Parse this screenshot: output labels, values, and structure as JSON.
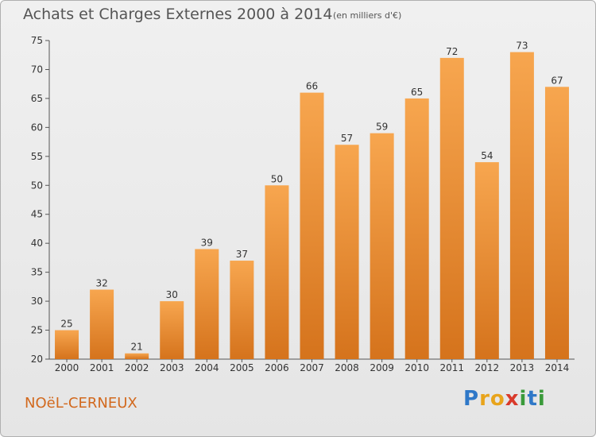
{
  "chart_data": {
    "type": "bar",
    "title": "Achats et Charges Externes 2000 à 2014",
    "subtitle": "(en milliers d'€)",
    "categories": [
      "2000",
      "2001",
      "2002",
      "2003",
      "2004",
      "2005",
      "2006",
      "2007",
      "2008",
      "2009",
      "2010",
      "2011",
      "2012",
      "2013",
      "2014"
    ],
    "values": [
      25,
      32,
      21,
      30,
      39,
      37,
      50,
      66,
      57,
      59,
      65,
      72,
      54,
      73,
      67
    ],
    "xlabel": "",
    "ylabel": "",
    "ylim": [
      20,
      75
    ],
    "yticks": [
      20,
      25,
      30,
      35,
      40,
      45,
      50,
      55,
      60,
      65,
      70,
      75
    ],
    "grid": false,
    "legend": "none",
    "bar_color_top": "#f7a64f",
    "bar_color_bottom": "#d5731c"
  },
  "footer": {
    "commune": "NOëL-CERNEUX",
    "logo_letters": [
      {
        "ch": "P",
        "color": "#2f78c8"
      },
      {
        "ch": "r",
        "color": "#e8a41c"
      },
      {
        "ch": "o",
        "color": "#e8a41c"
      },
      {
        "ch": "x",
        "color": "#d93a2b"
      },
      {
        "ch": "i",
        "color": "#3a9a3a"
      },
      {
        "ch": "t",
        "color": "#2f78c8"
      },
      {
        "ch": "i",
        "color": "#3a9a3a"
      }
    ]
  }
}
